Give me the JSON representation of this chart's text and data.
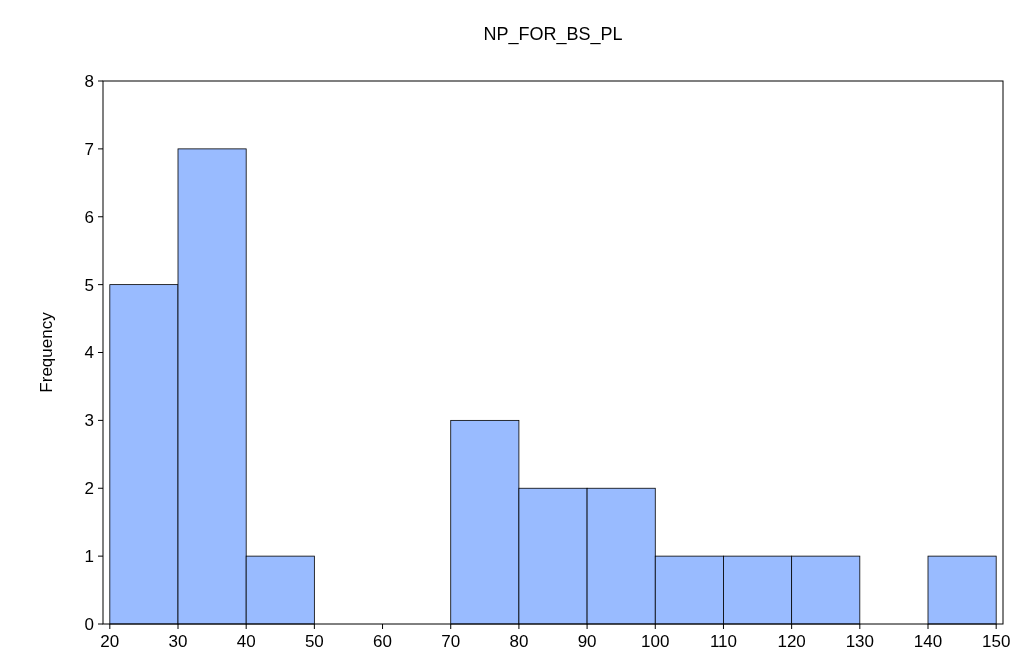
{
  "chart_data": {
    "type": "histogram",
    "title": "NP_FOR_BS_PL",
    "ylabel": "Frequency",
    "bins": [
      20,
      30,
      40,
      50,
      60,
      70,
      80,
      90,
      100,
      110,
      120,
      130,
      140,
      150
    ],
    "values": [
      5,
      7,
      1,
      0,
      0,
      3,
      2,
      2,
      1,
      1,
      1,
      0,
      1
    ],
    "color": "#99bbff",
    "xlim": [
      19,
      151
    ],
    "xticks": [
      20,
      30,
      40,
      50,
      60,
      70,
      80,
      90,
      100,
      110,
      120,
      130,
      140,
      150
    ],
    "ylim": [
      0,
      8
    ],
    "yticks": [
      0,
      1,
      2,
      3,
      4,
      5,
      6,
      7,
      8
    ],
    "grid": false
  }
}
